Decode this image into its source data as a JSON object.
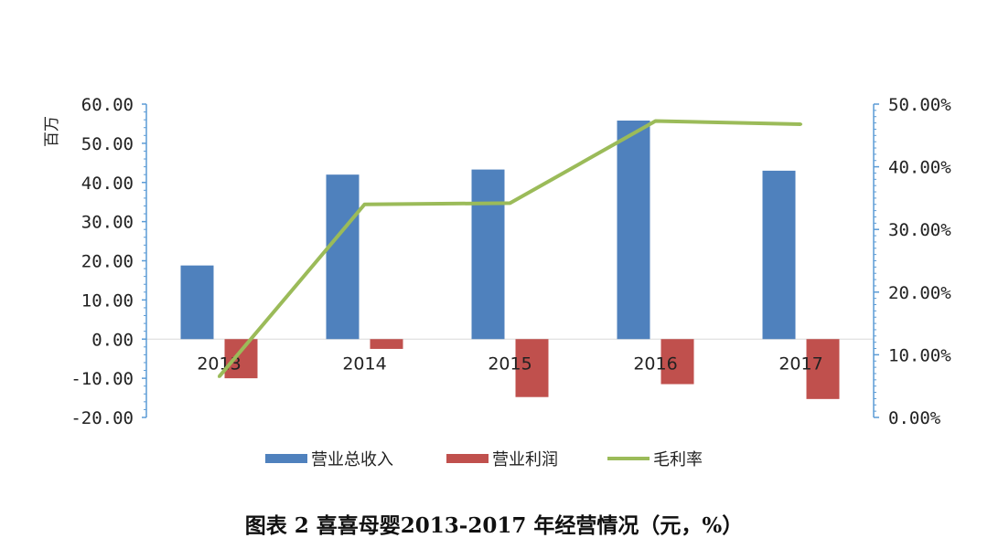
{
  "caption": "图表 2 喜喜母婴2013-2017 年经营情况（元，%）",
  "chart_data": {
    "type": "bar+line",
    "categories": [
      "2013",
      "2014",
      "2015",
      "2016",
      "2017"
    ],
    "left_axis": {
      "unit_label": "百万",
      "range": [
        -20,
        60
      ],
      "ticks": [
        "60.00",
        "50.00",
        "40.00",
        "30.00",
        "20.00",
        "10.00",
        "0.00",
        "-10.00",
        "-20.00"
      ]
    },
    "right_axis": {
      "range": [
        0,
        50
      ],
      "ticks": [
        "50.00%",
        "40.00%",
        "30.00%",
        "20.00%",
        "10.00%",
        "0.00%"
      ]
    },
    "series": [
      {
        "name": "营业总收入",
        "type": "bar",
        "axis": "left",
        "color": "#4F81BD",
        "values": [
          18.8,
          42.0,
          43.3,
          55.8,
          43.0
        ]
      },
      {
        "name": "营业利润",
        "type": "bar",
        "axis": "left",
        "color": "#C0504D",
        "values": [
          -10.0,
          -2.5,
          -14.8,
          -11.5,
          -15.3
        ]
      },
      {
        "name": "毛利率",
        "type": "line",
        "axis": "right",
        "color": "#9BBB59",
        "values": [
          6.5,
          34.0,
          34.2,
          47.3,
          46.8
        ]
      }
    ],
    "legend_position": "bottom",
    "grid": false
  }
}
